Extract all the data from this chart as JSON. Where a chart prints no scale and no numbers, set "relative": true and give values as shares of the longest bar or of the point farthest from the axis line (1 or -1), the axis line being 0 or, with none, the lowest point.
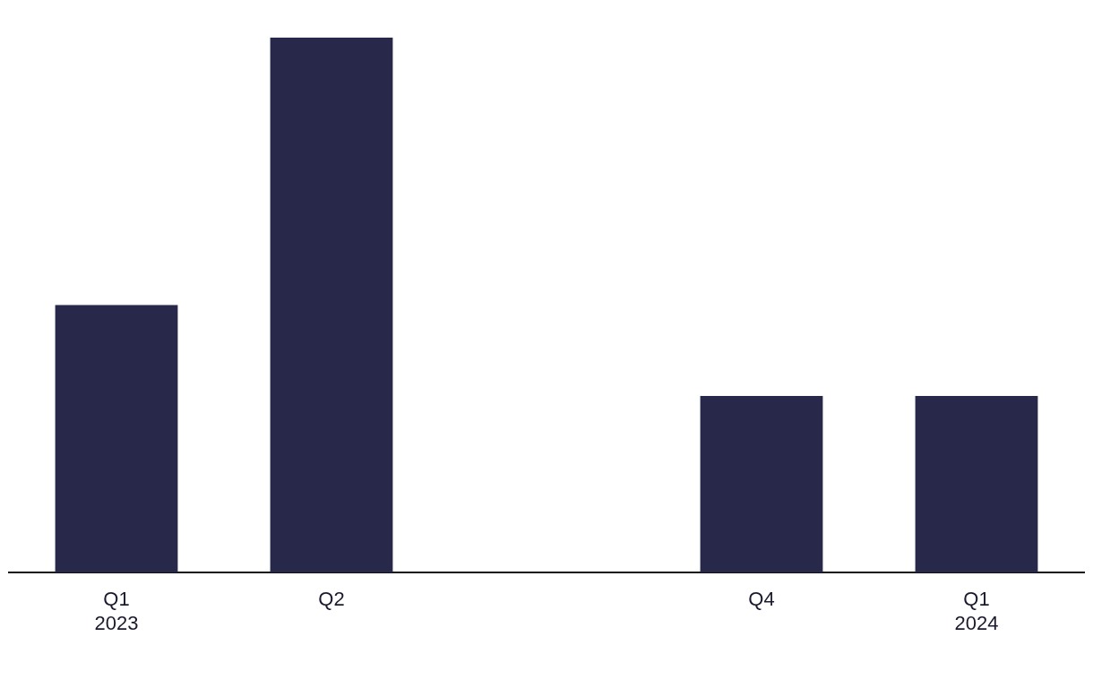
{
  "chart_data": {
    "type": "bar",
    "relative": true,
    "categories": [
      "Q1\n2023",
      "Q2",
      null,
      "Q4",
      "Q1\n2024"
    ],
    "values": [
      0.5,
      1,
      null,
      0.33,
      0.33
    ],
    "color": "#28294a",
    "grid": false,
    "legend": false
  }
}
